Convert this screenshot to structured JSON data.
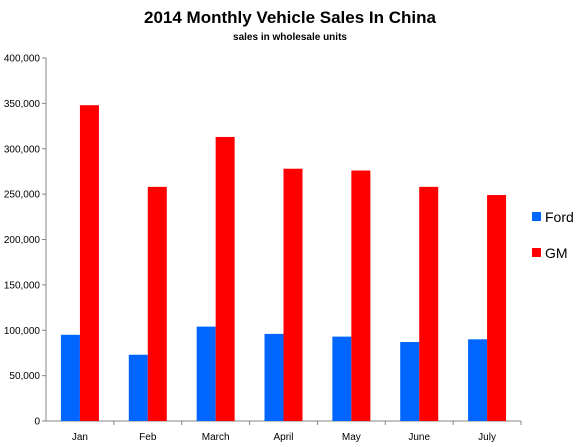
{
  "chart_data": {
    "type": "bar",
    "title": "2014 Monthly Vehicle Sales In China",
    "subtitle": "sales in wholesale units",
    "xlabel": "",
    "ylabel": "",
    "categories": [
      "Jan",
      "Feb",
      "March",
      "April",
      "May",
      "June",
      "July"
    ],
    "series": [
      {
        "name": "Ford",
        "color": "#0066ff",
        "values": [
          95000,
          73000,
          104000,
          96000,
          93000,
          87000,
          90000
        ]
      },
      {
        "name": "GM",
        "color": "#ff0000",
        "values": [
          348000,
          258000,
          313000,
          278000,
          276000,
          258000,
          249000
        ]
      }
    ],
    "ylim": [
      0,
      400000
    ],
    "yticks": [
      0,
      50000,
      100000,
      150000,
      200000,
      250000,
      300000,
      350000,
      400000
    ],
    "ytick_labels": [
      "0",
      "50,000",
      "100,000",
      "150,000",
      "200,000",
      "250,000",
      "300,000",
      "350,000",
      "400,000"
    ],
    "grid": false,
    "legend_position": "right"
  }
}
